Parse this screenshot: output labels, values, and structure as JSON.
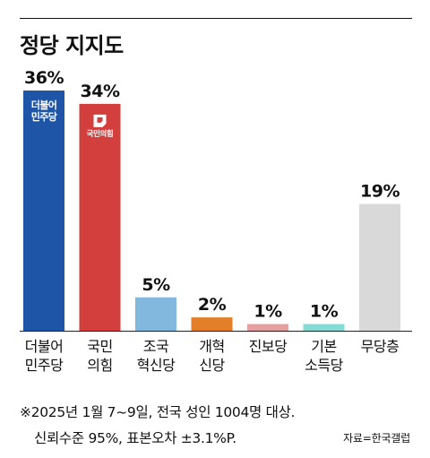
{
  "title": "정당 지지도",
  "chart_data": {
    "type": "bar",
    "title": "정당 지지도",
    "categories": [
      [
        "더불어",
        "민주당"
      ],
      [
        "국민",
        "의힘"
      ],
      [
        "조국",
        "혁신당"
      ],
      [
        "개혁",
        "신당"
      ],
      [
        "진보당"
      ],
      [
        "기본",
        "소득당"
      ],
      [
        "무당층"
      ]
    ],
    "values": [
      36,
      34,
      5,
      2,
      1,
      1,
      19
    ],
    "value_labels": [
      "36%",
      "34%",
      "5%",
      "2%",
      "1%",
      "1%",
      "19%"
    ],
    "colors": [
      "#1f55a6",
      "#d23f3c",
      "#82b7de",
      "#e37f28",
      "#e4a0a1",
      "#86dcd4",
      "#d9d9d9"
    ],
    "bar_badges": [
      {
        "bar": 0,
        "lines": [
          "더불어",
          "민주당"
        ],
        "color": "#ffffff"
      },
      {
        "bar": 1,
        "lines": [
          "국민의힘"
        ],
        "color": "#ffffff",
        "icon": "ppp-logo-icon"
      }
    ],
    "ylim": [
      0,
      36
    ]
  },
  "footnote": {
    "line1": "※2025년 1월 7~9일, 전국 성인 1004명 대상.",
    "line2": "신뢰수준 95%, 표본오차 ±3.1%P."
  },
  "source": "자료=한국갤럽"
}
